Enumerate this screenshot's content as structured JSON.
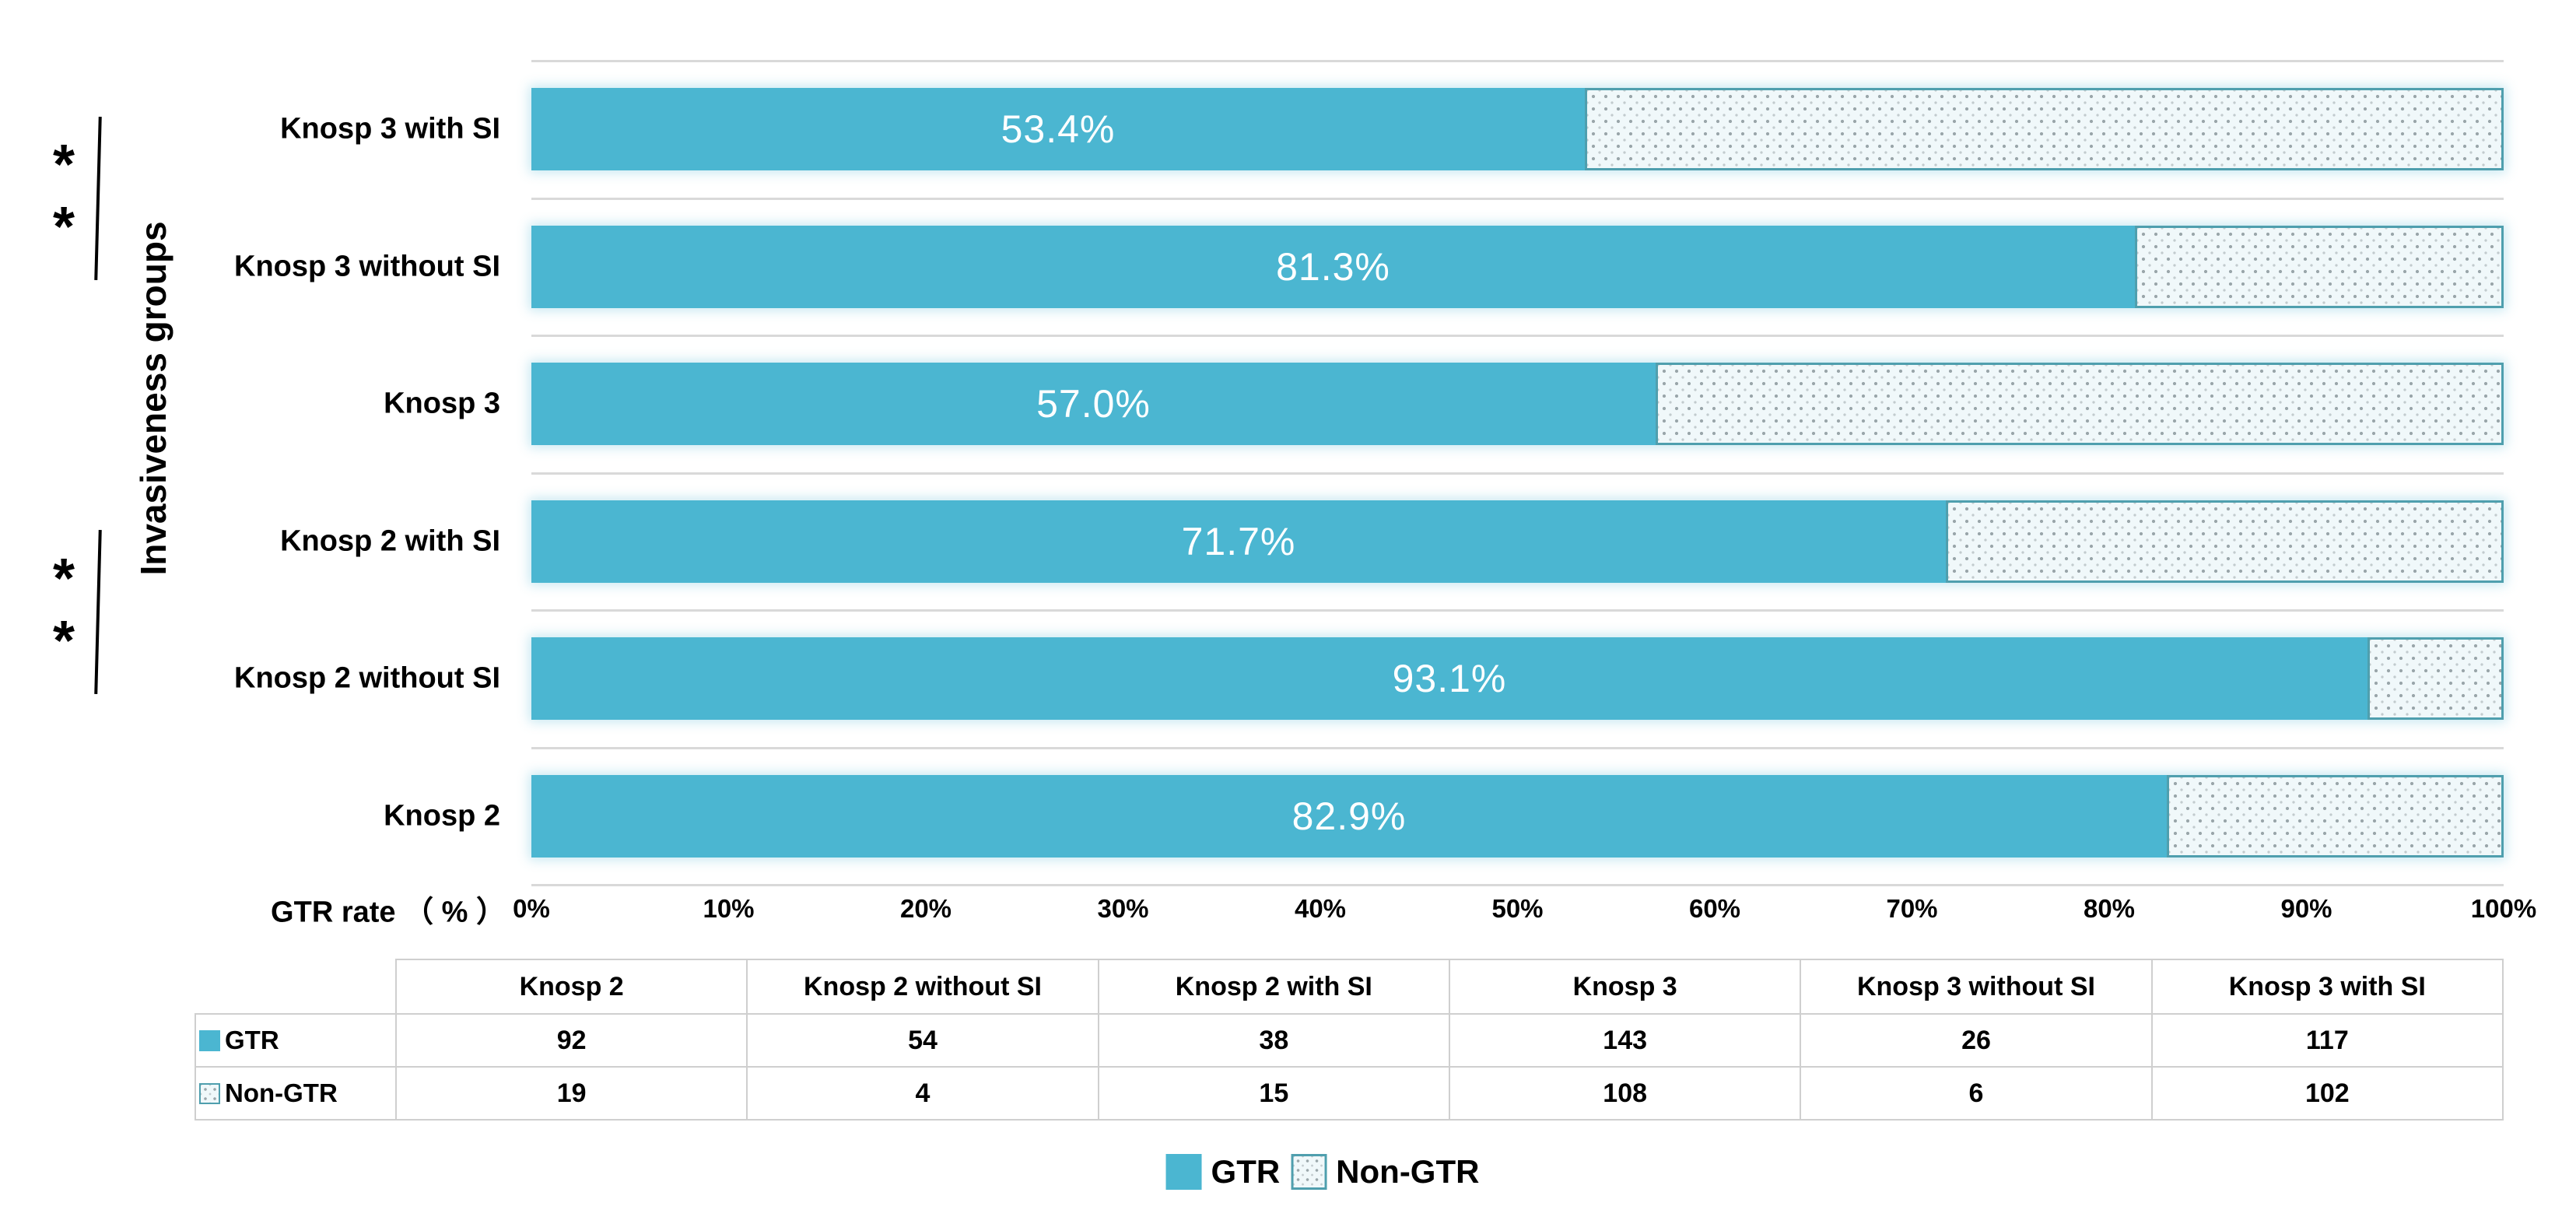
{
  "colors": {
    "gtr": "#4bb6d1",
    "non_gtr_border": "#4f9fae",
    "pattern_bg": "#f0f8fa",
    "pattern_dot": "#9aa6aa",
    "pattern_dot2": "#c2cbce",
    "gridline": "#d9d9d9",
    "table_border": "#cfcfcf",
    "bar_value_text": "#ffffff",
    "text": "#000000"
  },
  "chart_data": {
    "type": "bar",
    "orientation": "horizontal",
    "stacked": true,
    "xlabel": "GTR rate （ % ）",
    "ylabel": "Invasiveness groups",
    "xlim": [
      0,
      100
    ],
    "x_ticks": [
      "0%",
      "10%",
      "20%",
      "30%",
      "40%",
      "50%",
      "60%",
      "70%",
      "80%",
      "90%",
      "100%"
    ],
    "grid": "row-separators",
    "legend_position": "bottom",
    "series_names": [
      "GTR",
      "Non-GTR"
    ],
    "bars": [
      {
        "category": "Knosp 3 with SI",
        "gtr_pct": 53.4,
        "gtr_pct_label": "53.4%",
        "gtr_count": 117,
        "non_gtr_count": 102
      },
      {
        "category": "Knosp 3 without SI",
        "gtr_pct": 81.3,
        "gtr_pct_label": "81.3%",
        "gtr_count": 26,
        "non_gtr_count": 6
      },
      {
        "category": "Knosp 3",
        "gtr_pct": 57.0,
        "gtr_pct_label": "57.0%",
        "gtr_count": 143,
        "non_gtr_count": 108
      },
      {
        "category": "Knosp 2 with SI",
        "gtr_pct": 71.7,
        "gtr_pct_label": "71.7%",
        "gtr_count": 38,
        "non_gtr_count": 15
      },
      {
        "category": "Knosp 2 without SI",
        "gtr_pct": 93.1,
        "gtr_pct_label": "93.1%",
        "gtr_count": 54,
        "non_gtr_count": 4
      },
      {
        "category": "Knosp 2",
        "gtr_pct": 82.9,
        "gtr_pct_label": "82.9%",
        "gtr_count": 92,
        "non_gtr_count": 19
      }
    ],
    "significance_brackets": [
      {
        "between": [
          "Knosp 3 with SI",
          "Knosp 3 without SI"
        ],
        "stars": [
          "*",
          "*"
        ]
      },
      {
        "between": [
          "Knosp 2 with SI",
          "Knosp 2 without SI"
        ],
        "stars": [
          "*",
          "*"
        ]
      }
    ]
  },
  "table": {
    "columns": [
      "",
      "Knosp 2",
      "Knosp 2 without SI",
      "Knosp 2 with SI",
      "Knosp 3",
      "Knosp 3 without SI",
      "Knosp 3 with SI"
    ],
    "rows": [
      {
        "label": "GTR",
        "swatch": "solid",
        "values": [
          92,
          54,
          38,
          143,
          26,
          117
        ]
      },
      {
        "label": "Non-GTR",
        "swatch": "pattern",
        "values": [
          19,
          4,
          15,
          108,
          6,
          102
        ]
      }
    ]
  },
  "legend": {
    "items": [
      {
        "label": "GTR",
        "swatch": "solid"
      },
      {
        "label": "Non-GTR",
        "swatch": "pattern"
      }
    ]
  }
}
